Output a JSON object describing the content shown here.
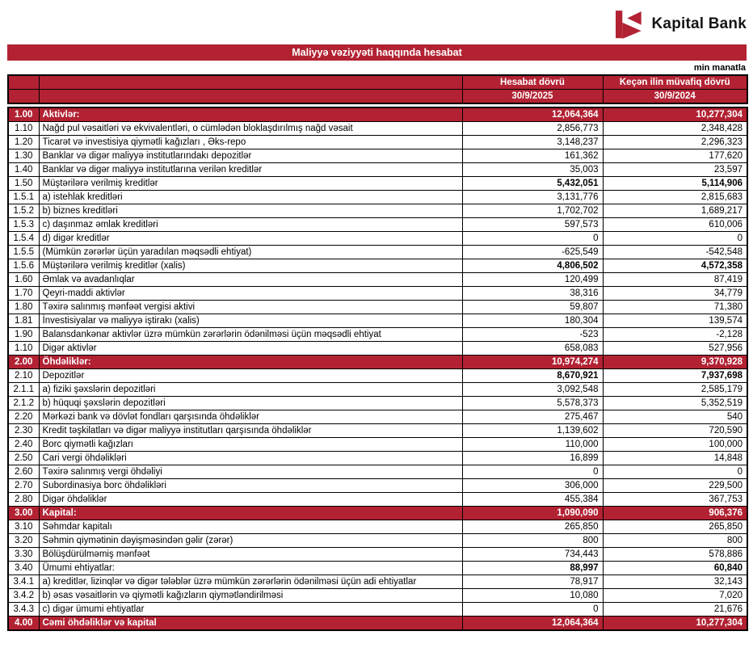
{
  "brand": {
    "name": "Kapital Bank",
    "red": "#B22233"
  },
  "title": "Maliyyə vəziyyəti haqqında hesabat",
  "unit_note": "min manatla",
  "table": {
    "header": {
      "period_label_current": "Hesabat dövrü",
      "period_label_previous": "Keçən ilin müvafiq dövrü",
      "date_current": "30/9/2025",
      "date_previous": "30/9/2024"
    },
    "rows": [
      {
        "num": "1.00",
        "label": "Aktivlər:",
        "current": "12,064,364",
        "previous": "10,277,304",
        "style": "section"
      },
      {
        "num": "1.10",
        "label": "Nağd pul vəsaitləri və  ekvivalentləri, o cümlədən bloklaşdırılmış nağd vəsait",
        "current": "2,856,773",
        "previous": "2,348,428",
        "style": "normal"
      },
      {
        "num": "1.20",
        "label": "Ticarət və investisiya qiymətli kağızları , Əks-repo",
        "current": "3,148,237",
        "previous": "2,296,323",
        "style": "normal"
      },
      {
        "num": "1.30",
        "label": "Banklar və digər maliyyə institutlarındakı depozitlər",
        "current": "161,362",
        "previous": "177,620",
        "style": "normal"
      },
      {
        "num": "1.40",
        "label": "Banklar və digər maliyyə institutlarına verilən kreditlər",
        "current": "35,003",
        "previous": "23,597",
        "style": "normal"
      },
      {
        "num": "1.50",
        "label": "Müştərilərə verilmiş kreditlər",
        "current": "5,432,051",
        "previous": "5,114,906",
        "style": "subtotal"
      },
      {
        "num": "1.5.1",
        "label": "a) istehlak kreditləri",
        "current": "3,131,776",
        "previous": "2,815,683",
        "style": "normal"
      },
      {
        "num": "1.5.2",
        "label": "b) biznes kreditləri",
        "current": "1,702,702",
        "previous": "1,689,217",
        "style": "normal"
      },
      {
        "num": "1.5.3",
        "label": "c) daşınmaz əmlak kreditləri",
        "current": "597,573",
        "previous": "610,006",
        "style": "normal"
      },
      {
        "num": "1.5.4",
        "label": "d) digər kreditlər",
        "current": "0",
        "previous": "0",
        "style": "normal"
      },
      {
        "num": "1.5.5",
        "label": "(Mümkün zərərlər üçün yaradılan məqsədli ehtiyat)",
        "current": "-625,549",
        "previous": "-542,548",
        "style": "normal"
      },
      {
        "num": "1.5.6",
        "label": "Müştərilərə verilmiş kreditlər (xalis)",
        "current": "4,806,502",
        "previous": "4,572,358",
        "style": "subtotal"
      },
      {
        "num": "1.60",
        "label": "Əmlak və avadanlıqlar",
        "current": "120,499",
        "previous": "87,419",
        "style": "normal"
      },
      {
        "num": "1.70",
        "label": "Qeyri-maddi aktivlər",
        "current": "38,316",
        "previous": "34,779",
        "style": "normal"
      },
      {
        "num": "1.80",
        "label": "Təxirə salınmış mənfəət vergisi aktivi",
        "current": "59,807",
        "previous": "71,380",
        "style": "normal"
      },
      {
        "num": "1.81",
        "label": "İnvestisiyalar və maliyyə iştirakı (xalis)",
        "current": "180,304",
        "previous": "139,574",
        "style": "normal"
      },
      {
        "num": "1.90",
        "label": "Balansdankənar aktivlər üzrə mümkün zərərlərin ödənilməsi üçün məqsədli ehtiyat",
        "current": "-523",
        "previous": "-2,128",
        "style": "normal"
      },
      {
        "num": "1.10",
        "label": "Digər aktivlər",
        "current": "658,083",
        "previous": "527,956",
        "style": "normal"
      },
      {
        "num": "2.00",
        "label": "Öhdəliklər:",
        "current": "10,974,274",
        "previous": "9,370,928",
        "style": "section"
      },
      {
        "num": "2.10",
        "label": "Depozitlər",
        "current": "8,670,921",
        "previous": "7,937,698",
        "style": "subtotal"
      },
      {
        "num": "2.1.1",
        "label": "a) fiziki şəxslərin depozitləri",
        "current": "3,092,548",
        "previous": "2,585,179",
        "style": "normal"
      },
      {
        "num": "2.1.2",
        "label": "b) hüquqi şəxslərin depozitləri",
        "current": "5,578,373",
        "previous": "5,352,519",
        "style": "normal"
      },
      {
        "num": "2.20",
        "label": "Mərkəzi bank və dövlət fondları qarşısında öhdəliklər",
        "current": "275,467",
        "previous": "540",
        "style": "normal"
      },
      {
        "num": "2.30",
        "label": "Kredit təşkilatları və digər maliyyə institutları qarşısında öhdəliklər",
        "current": "1,139,602",
        "previous": "720,590",
        "style": "normal"
      },
      {
        "num": "2.40",
        "label": "Borc qiymətli kağızları",
        "current": "110,000",
        "previous": "100,000",
        "style": "normal"
      },
      {
        "num": "2.50",
        "label": "Cari vergi öhdəlikləri",
        "current": "16,899",
        "previous": "14,848",
        "style": "normal"
      },
      {
        "num": "2.60",
        "label": "Təxirə salınmış vergi öhdəliyi",
        "current": "0",
        "previous": "0",
        "style": "normal"
      },
      {
        "num": "2.70",
        "label": "Subordinasiya borc öhdəlikləri",
        "current": "306,000",
        "previous": "229,500",
        "style": "normal"
      },
      {
        "num": "2.80",
        "label": "Digər öhdəliklər",
        "current": "455,384",
        "previous": "367,753",
        "style": "normal"
      },
      {
        "num": "3.00",
        "label": "Kapital:",
        "current": "1,090,090",
        "previous": "906,376",
        "style": "section"
      },
      {
        "num": "3.10",
        "label": "Səhmdar kapitalı",
        "current": "265,850",
        "previous": "265,850",
        "style": "normal"
      },
      {
        "num": "3.20",
        "label": "Səhmin qiymətinin dəyişməsindən gəlir (zərər)",
        "current": "800",
        "previous": "800",
        "style": "normal"
      },
      {
        "num": "3.30",
        "label": "Bölüşdürülməmiş mənfəət",
        "current": "734,443",
        "previous": "578,886",
        "style": "normal"
      },
      {
        "num": "3.40",
        "label": "Ümumi ehtiyatlar:",
        "current": "88,997",
        "previous": "60,840",
        "style": "subtotal"
      },
      {
        "num": "3.4.1",
        "label": "a) kreditlər, lizinqlər və digər tələblər üzrə mümkün zərərlərin ödənilməsi üçün adi ehtiyatlar",
        "current": "78,917",
        "previous": "32,143",
        "style": "normal"
      },
      {
        "num": "3.4.2",
        "label": "b) əsas vəsaitlərin və qiymətli kağızların qiymətləndirilməsi",
        "current": "10,080",
        "previous": "7,020",
        "style": "normal"
      },
      {
        "num": "3.4.3",
        "label": "c) digər ümumi ehtiyatlar",
        "current": "0",
        "previous": "21,676",
        "style": "normal"
      },
      {
        "num": "4.00",
        "label": "Cəmi öhdəliklər və kapital",
        "current": "12,064,364",
        "previous": "10,277,304",
        "style": "section"
      }
    ]
  }
}
